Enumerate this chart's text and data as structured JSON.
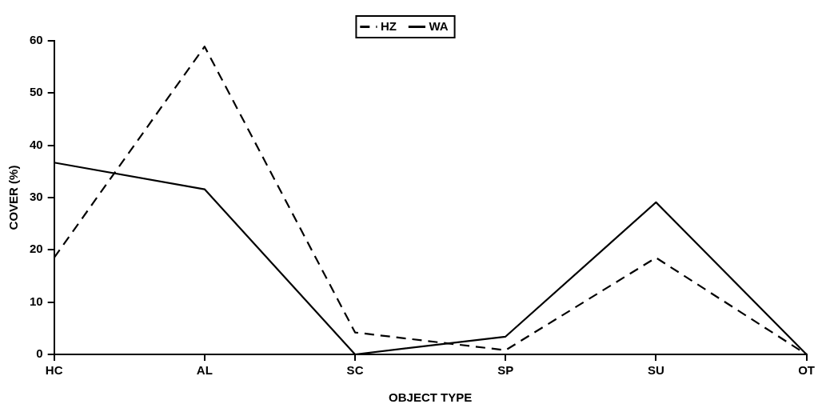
{
  "chart_data": {
    "type": "line",
    "xlabel": "OBJECT TYPE",
    "ylabel": "COVER (%)",
    "categories": [
      "HC",
      "AL",
      "SC",
      "SP",
      "SU",
      "OT"
    ],
    "series": [
      {
        "name": "HZ",
        "color": "#000000",
        "line_style": "dashed",
        "values": [
          18.5,
          58.9,
          4.2,
          0.8,
          18.5,
          0
        ]
      },
      {
        "name": "WA",
        "color": "#000000",
        "line_style": "solid",
        "values": [
          36.7,
          31.6,
          0,
          3.4,
          29.1,
          0
        ]
      }
    ],
    "ylim": [
      0,
      60
    ],
    "yticks": [
      0,
      10,
      20,
      30,
      40,
      50,
      60
    ],
    "grid": false,
    "legend": "top",
    "marker": "none"
  }
}
